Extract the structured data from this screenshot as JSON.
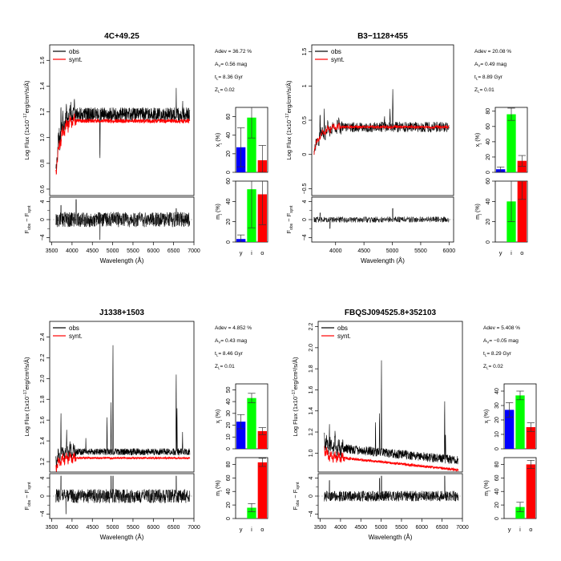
{
  "figure": {
    "legend": {
      "obs": "obs",
      "synt": "synt."
    },
    "xlabel": "Wavelength (Å)",
    "ylabel_main_base": "Log Flux (1x10",
    "ylabel_main_exp": "−17",
    "ylabel_main_units": "erg/cm²/s/Å)",
    "ylabel_resid_F": "F",
    "ylabel_resid_obs": "obs",
    "ylabel_resid_minus": " − F",
    "ylabel_resid_synt": "synt",
    "bar_ylabel_x": "x",
    "bar_ylabel_m": "m",
    "bar_ylabel_sub": "j",
    "bar_ylabel_unit": " (%)",
    "bar_categories": [
      "y",
      "i",
      "o"
    ],
    "bar_colors": [
      "#0000ff",
      "#00ff00",
      "#ff0000"
    ],
    "obs_color": "#000000",
    "synt_color": "#ff0000"
  },
  "chart_data": [
    {
      "type": "line",
      "title": "4C+49.25",
      "stats": [
        "Adev = 36.72 %",
        "A = 0.56 mag",
        "t = 8.36 Gyr",
        "Z = 0.02"
      ],
      "stat_subs": [
        "",
        "V",
        "L",
        "L"
      ],
      "xlim": [
        3450,
        7000
      ],
      "xticks": [
        3500,
        4000,
        4500,
        5000,
        5500,
        6000,
        6500,
        7000
      ],
      "ylim": [
        0.55,
        1.72
      ],
      "yticks": [
        0.6,
        0.8,
        1.0,
        1.2,
        1.4,
        1.6
      ],
      "ytick_labels": [
        "0.6",
        "0.8",
        "1.0",
        "1.2",
        "1.4",
        "1.6"
      ],
      "spectrum": {
        "x_start": 3600,
        "x_end": 6900,
        "blue_level": 0.78,
        "red_level": 1.2,
        "turn": 4000,
        "noise": 0.05,
        "synt_offset": -0.05,
        "lines": [
          [
            3727,
            0.35
          ],
          [
            4686,
            -0.4
          ],
          [
            6563,
            0.18
          ],
          [
            6720,
            0.12
          ]
        ]
      },
      "resid_noise": 1.3,
      "resid_spikes": [
        [
          3727,
          3.2
        ],
        [
          4686,
          -4.5
        ],
        [
          4100,
          4.5
        ],
        [
          6563,
          2.5
        ]
      ],
      "xj": {
        "values": [
          27,
          59,
          13
        ],
        "errors": [
          21,
          22,
          16
        ],
        "ylim": [
          0,
          70
        ],
        "yticks": [
          0,
          20,
          40,
          60
        ]
      },
      "mj": {
        "values": [
          3,
          52,
          47
        ],
        "errors": [
          4,
          38,
          30
        ],
        "ylim": [
          0,
          60
        ],
        "yticks": [
          0,
          20,
          40,
          60
        ]
      }
    },
    {
      "type": "line",
      "title": "B3−1128+455",
      "stats": [
        "Adev = 20.08 %",
        "A = 0.49 mag",
        "t = 8.89 Gyr",
        "Z = 0.01"
      ],
      "stat_subs": [
        "",
        "V",
        "L",
        "L"
      ],
      "xlim": [
        3580,
        6080
      ],
      "xticks": [
        4000,
        4500,
        5000,
        5500,
        6000
      ],
      "ylim": [
        -0.6,
        1.6
      ],
      "yticks": [
        -0.5,
        0,
        0.5,
        1.0,
        1.5
      ],
      "ytick_labels": [
        "−0.5",
        "0",
        "0.5",
        "1",
        "1.5"
      ],
      "spectrum": {
        "x_start": 3620,
        "x_end": 6000,
        "blue_level": 0.05,
        "red_level": 0.42,
        "turn": 4000,
        "noise": 0.07,
        "synt_offset": 0.0,
        "lines": [
          [
            3727,
            0.5
          ],
          [
            3800,
            0.3
          ],
          [
            4861,
            0.15
          ],
          [
            5007,
            0.55
          ],
          [
            4959,
            0.25
          ]
        ]
      },
      "resid_noise": 0.5,
      "resid_spikes": [
        [
          3727,
          1.5
        ],
        [
          5007,
          2.5
        ],
        [
          3900,
          -2.0
        ]
      ],
      "xj": {
        "values": [
          4,
          76,
          15
        ],
        "errors": [
          3,
          8,
          7
        ],
        "ylim": [
          0,
          85
        ],
        "yticks": [
          0,
          20,
          40,
          60,
          80
        ]
      },
      "mj": {
        "values": [
          0,
          40,
          60
        ],
        "errors": [
          0,
          20,
          18
        ],
        "ylim": [
          0,
          60
        ],
        "yticks": [
          0,
          20,
          40,
          60
        ]
      }
    },
    {
      "type": "line",
      "title": "J1338+1503",
      "stats": [
        "Adev = 4.852 %",
        "A = 0.43 mag",
        "t = 8.46 Gyr",
        "Z = 0.01"
      ],
      "stat_subs": [
        "",
        "V",
        "L",
        "L"
      ],
      "xlim": [
        3450,
        7000
      ],
      "xticks": [
        3500,
        4000,
        4500,
        5000,
        5500,
        6000,
        6500,
        7000
      ],
      "ylim": [
        1.1,
        2.55
      ],
      "yticks": [
        1.2,
        1.4,
        1.6,
        1.8,
        2.0,
        2.2,
        2.4
      ],
      "ytick_labels": [
        "1.2",
        "1.4",
        "1.6",
        "1.8",
        "2.0",
        "2.2",
        "2.4"
      ],
      "spectrum": {
        "x_start": 3600,
        "x_end": 6900,
        "blue_level": 1.2,
        "red_level": 1.3,
        "turn": 3900,
        "noise": 0.03,
        "synt_offset": -0.06,
        "lines": [
          [
            3727,
            0.5
          ],
          [
            3869,
            0.2
          ],
          [
            4340,
            0.1
          ],
          [
            4861,
            0.35
          ],
          [
            4959,
            0.55
          ],
          [
            5007,
            1.2
          ],
          [
            6563,
            0.85
          ],
          [
            6583,
            0.5
          ],
          [
            6720,
            0.2
          ]
        ]
      },
      "resid_noise": 1.2,
      "resid_spikes": [
        [
          3727,
          4.5
        ],
        [
          4959,
          4.5
        ],
        [
          5007,
          4.5
        ],
        [
          6563,
          4.5
        ],
        [
          3850,
          -4.0
        ]
      ],
      "xj": {
        "values": [
          23,
          43,
          15
        ],
        "errors": [
          6,
          4,
          3
        ],
        "ylim": [
          0,
          55
        ],
        "yticks": [
          0,
          10,
          20,
          30,
          40,
          50
        ]
      },
      "mj": {
        "values": [
          0,
          16,
          83
        ],
        "errors": [
          0,
          6,
          6
        ],
        "ylim": [
          0,
          90
        ],
        "yticks": [
          0,
          20,
          40,
          60,
          80
        ]
      }
    },
    {
      "type": "line",
      "title": "FBQSJ094525.8+352103",
      "stats": [
        "Adev = 5.408 %",
        "A = −0.05 mag",
        "t = 8.29 Gyr",
        "Z = 0.02"
      ],
      "stat_subs": [
        "",
        "V",
        "L",
        "L"
      ],
      "xlim": [
        3450,
        7000
      ],
      "xticks": [
        3500,
        4000,
        4500,
        5000,
        5500,
        6000,
        6500,
        7000
      ],
      "ylim": [
        0.82,
        2.25
      ],
      "yticks": [
        1.0,
        1.2,
        1.4,
        1.6,
        1.8,
        2.0,
        2.2
      ],
      "ytick_labels": [
        "1.0",
        "1.2",
        "1.4",
        "1.6",
        "1.8",
        "2.0",
        "2.2"
      ],
      "spectrum": {
        "x_start": 3600,
        "x_end": 6900,
        "blue_level": 1.13,
        "red_level": 1.05,
        "turn": 3800,
        "noise": 0.04,
        "synt_offset": -0.09,
        "slope": -0.12,
        "lines": [
          [
            3727,
            0.3
          ],
          [
            3869,
            0.15
          ],
          [
            4861,
            0.3
          ],
          [
            4959,
            0.4
          ],
          [
            5007,
            0.95
          ],
          [
            6563,
            0.6
          ],
          [
            6583,
            0.3
          ]
        ]
      },
      "resid_noise": 0.9,
      "resid_spikes": [
        [
          3727,
          3.5
        ],
        [
          4959,
          4.0
        ],
        [
          5007,
          4.5
        ],
        [
          6563,
          4.5
        ]
      ],
      "xj": {
        "values": [
          27,
          37,
          15
        ],
        "errors": [
          5,
          3,
          3
        ],
        "ylim": [
          0,
          45
        ],
        "yticks": [
          0,
          10,
          20,
          30,
          40
        ]
      },
      "mj": {
        "values": [
          0,
          17,
          80
        ],
        "errors": [
          0,
          7,
          6
        ],
        "ylim": [
          0,
          90
        ],
        "yticks": [
          0,
          20,
          40,
          60,
          80
        ]
      }
    }
  ]
}
